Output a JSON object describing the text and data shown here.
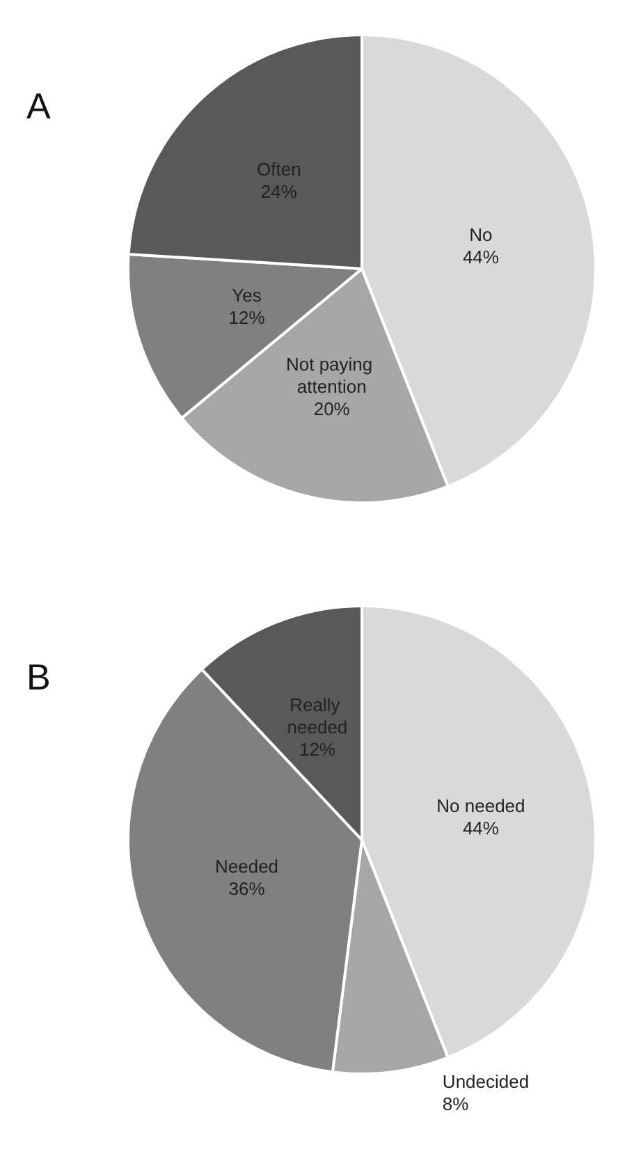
{
  "chart_data": [
    {
      "type": "pie",
      "title": "A",
      "categories": [
        "No",
        "Not paying attention",
        "Yes",
        "Often"
      ],
      "values": [
        44,
        20,
        12,
        24
      ],
      "colors": [
        "#d9d9d9",
        "#a6a6a6",
        "#808080",
        "#595959"
      ],
      "value_labels": [
        "44%",
        "20%",
        "12%",
        "24%"
      ],
      "legend": false
    },
    {
      "type": "pie",
      "title": "B",
      "categories": [
        "No needed",
        "Undecided",
        "Needed",
        "Really needed"
      ],
      "values": [
        44,
        8,
        36,
        12
      ],
      "colors": [
        "#d9d9d9",
        "#a6a6a6",
        "#808080",
        "#595959"
      ],
      "value_labels": [
        "44%",
        "8%",
        "36%",
        "12%"
      ],
      "legend": false
    }
  ]
}
